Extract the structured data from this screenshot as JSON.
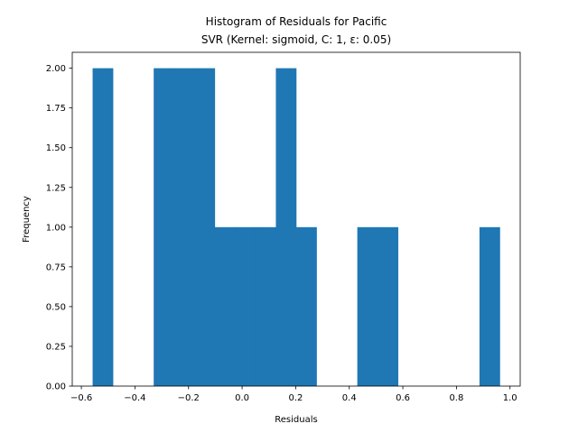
{
  "chart_data": {
    "type": "bar",
    "title": "Histogram of Residuals for Pacific",
    "subtitle": "SVR (Kernel: sigmoid, C: 1, ε: 0.05)",
    "xlabel": "Residuals",
    "ylabel": "Frequency",
    "xlim": [
      -0.6,
      1.0
    ],
    "ylim": [
      0,
      2.1
    ],
    "x_ticks": [
      -0.6,
      -0.4,
      -0.2,
      0.0,
      0.2,
      0.4,
      0.6,
      0.8,
      1.0
    ],
    "x_tick_labels": [
      "−0.6",
      "−0.4",
      "−0.2",
      "0.0",
      "0.2",
      "0.4",
      "0.6",
      "0.8",
      "1.0"
    ],
    "y_ticks": [
      0,
      0.25,
      0.5,
      0.75,
      1.0,
      1.25,
      1.5,
      1.75,
      2.0
    ],
    "y_tick_labels": [
      "0.00",
      "0.25",
      "0.50",
      "0.75",
      "1.00",
      "1.25",
      "1.50",
      "1.75",
      "2.00"
    ],
    "bin_edges": [
      -0.558,
      -0.482,
      -0.406,
      -0.33,
      -0.254,
      -0.178,
      -0.102,
      -0.026,
      0.05,
      0.126,
      0.202,
      0.278,
      0.354,
      0.43,
      0.506,
      0.582,
      0.658,
      0.734,
      0.81,
      0.886,
      0.962
    ],
    "values": [
      2,
      0,
      0,
      2,
      2,
      2,
      1,
      1,
      1,
      2,
      1,
      0,
      0,
      1,
      1,
      0,
      0,
      0,
      0,
      1
    ],
    "bar_color": "#1f77b4",
    "grid": false,
    "legend": false
  }
}
